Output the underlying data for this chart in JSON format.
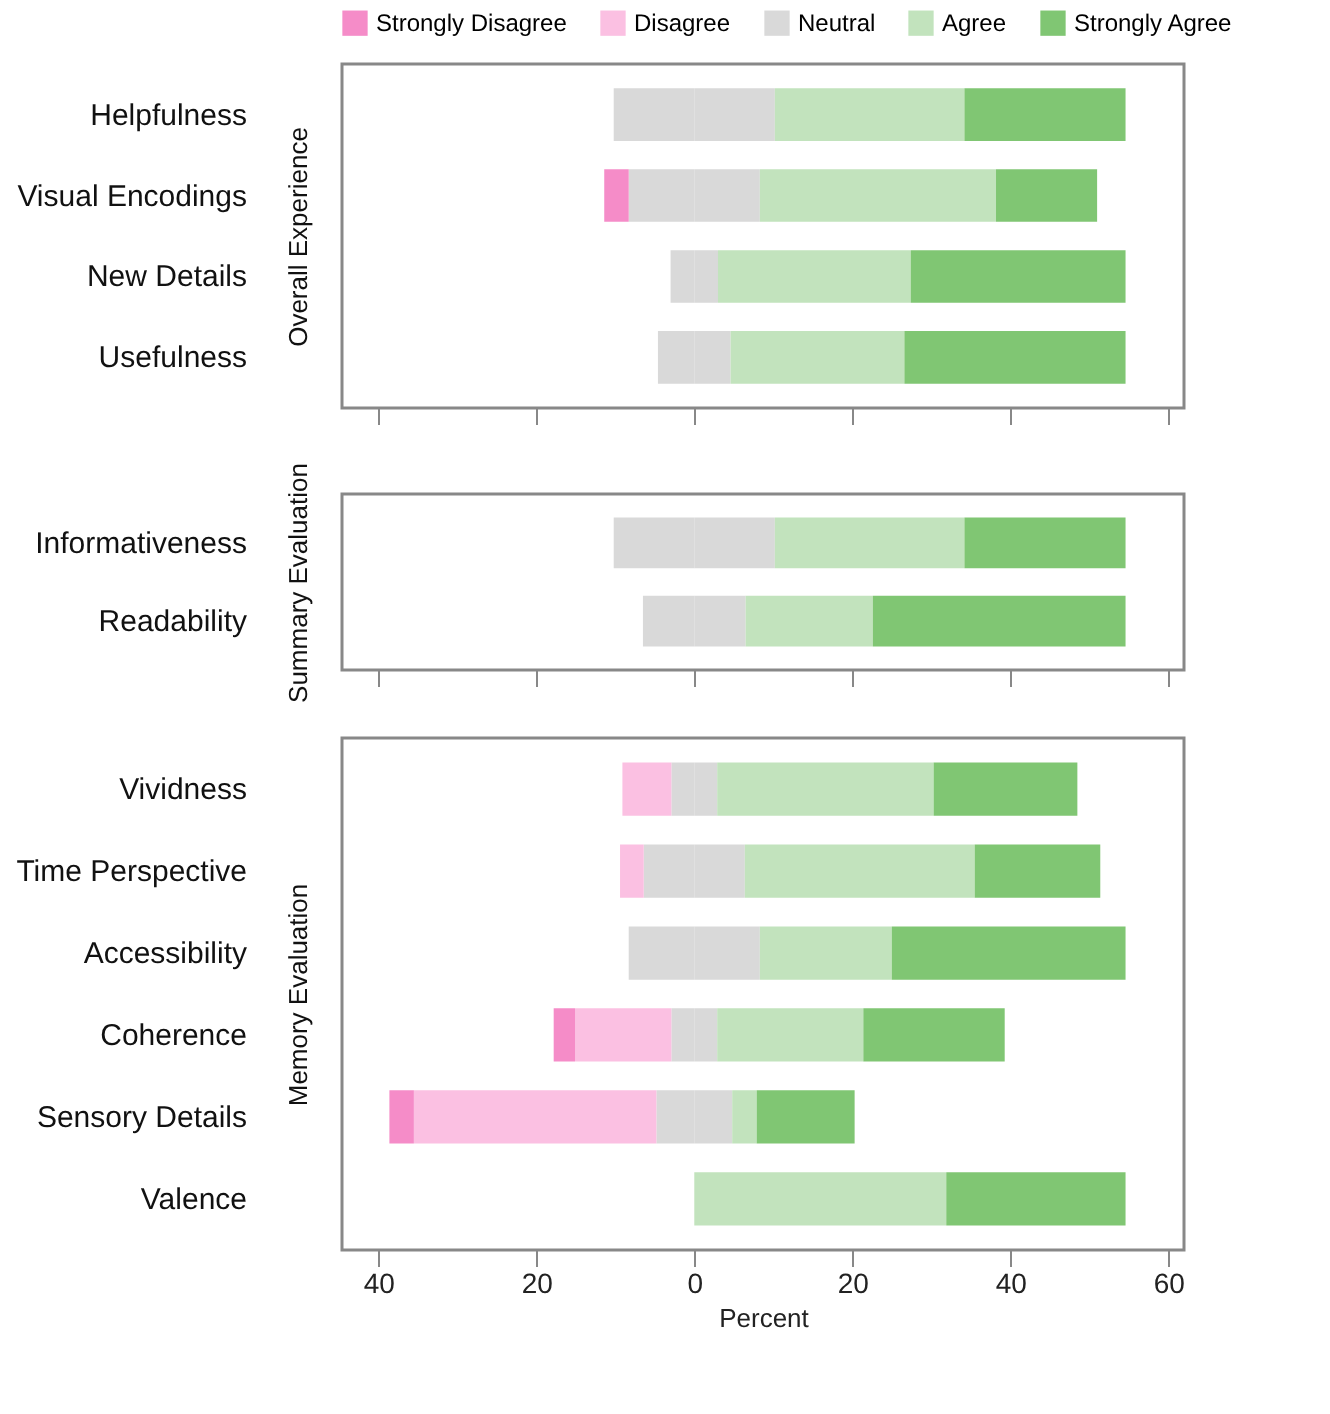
{
  "chart_data": [
    {
      "type": "bar",
      "orientation": "horizontal",
      "stacked": true,
      "ylabel": "Overall Experience",
      "legend": "top",
      "tick_labels": "y",
      "grid": false,
      "categories": [
        "Helpfulness",
        "Visual Encodings",
        "New Details",
        "Usefulness"
      ],
      "xlim": [
        -44.6,
        62
      ],
      "xticks": [
        {
          "value": -40,
          "label": null
        },
        {
          "value": -20,
          "label": null
        },
        {
          "value": 0,
          "label": null
        },
        {
          "value": 20,
          "label": null
        },
        {
          "value": 40,
          "label": null
        },
        {
          "value": 60,
          "label": null
        }
      ],
      "series": [
        {
          "name": "Neutral",
          "color": "#d9d9d9",
          "values": [
            -10.2,
            -8.3,
            -3.0,
            -4.6
          ]
        },
        {
          "name": "Disagree",
          "color": "#fbc0e2",
          "values": [
            null,
            null,
            null,
            null
          ]
        },
        {
          "name": "Strongly Disagree",
          "color": "#f58cc8",
          "values": [
            null,
            -3.1,
            null,
            null
          ]
        },
        {
          "color": "#d9d9d9",
          "values": [
            10.2,
            8.3,
            3.0,
            4.6
          ]
        },
        {
          "name": "Agree",
          "color": "#c2e3bd",
          "values": [
            24.0,
            29.9,
            24.4,
            22.0
          ]
        },
        {
          "name": "Strongly Agree",
          "color": "#80c673",
          "values": [
            20.4,
            12.8,
            27.2,
            28.0
          ]
        }
      ]
    },
    {
      "type": "bar",
      "orientation": "horizontal",
      "stacked": true,
      "ylabel": "Summary Evaluation",
      "tick_labels": "y",
      "grid": false,
      "categories": [
        "Informativeness",
        "Readability"
      ],
      "xlim": [
        -44.6,
        62
      ],
      "xticks": [
        {
          "value": -40,
          "label": null
        },
        {
          "value": -20,
          "label": null
        },
        {
          "value": 0,
          "label": null
        },
        {
          "value": 20,
          "label": null
        },
        {
          "value": 40,
          "label": null
        },
        {
          "value": 60,
          "label": null
        }
      ],
      "series": [
        {
          "color": "#d9d9d9",
          "values": [
            -10.2,
            -6.5
          ]
        },
        {
          "color": "#d9d9d9",
          "values": [
            10.2,
            6.5
          ]
        },
        {
          "color": "#c2e3bd",
          "values": [
            24.0,
            16.1
          ]
        },
        {
          "color": "#80c673",
          "values": [
            20.4,
            32.0
          ]
        }
      ]
    },
    {
      "type": "bar",
      "orientation": "horizontal",
      "stacked": true,
      "ylabel": "Memory Evaluation",
      "xlabel": "Percent",
      "grid": false,
      "categories": [
        "Vividness",
        "Time Perspective",
        "Accessibility",
        "Coherence",
        "Sensory Details",
        "Valence"
      ],
      "xlim": [
        -44.6,
        62
      ],
      "xticks": [
        {
          "value": -40,
          "label": "40"
        },
        {
          "value": -20,
          "label": "20"
        },
        0,
        20,
        40,
        60
      ],
      "series": [
        {
          "color": "#d9d9d9",
          "values": [
            -2.9,
            -6.4,
            -8.3,
            -2.9,
            -4.8,
            null
          ]
        },
        {
          "color": "#fbc0e2",
          "values": [
            -6.2,
            -3.0,
            null,
            -12.2,
            -30.7,
            null
          ]
        },
        {
          "color": "#f58cc8",
          "values": [
            null,
            null,
            null,
            -2.7,
            -3.1,
            null
          ]
        },
        {
          "color": "#d9d9d9",
          "values": [
            2.9,
            6.4,
            8.3,
            2.9,
            4.8,
            null
          ]
        },
        {
          "color": "#c2e3bd",
          "values": [
            27.4,
            29.1,
            16.7,
            18.5,
            3.1,
            31.9
          ]
        },
        {
          "color": "#80c673",
          "values": [
            18.2,
            15.9,
            29.6,
            17.9,
            12.4,
            22.7
          ]
        }
      ]
    }
  ]
}
